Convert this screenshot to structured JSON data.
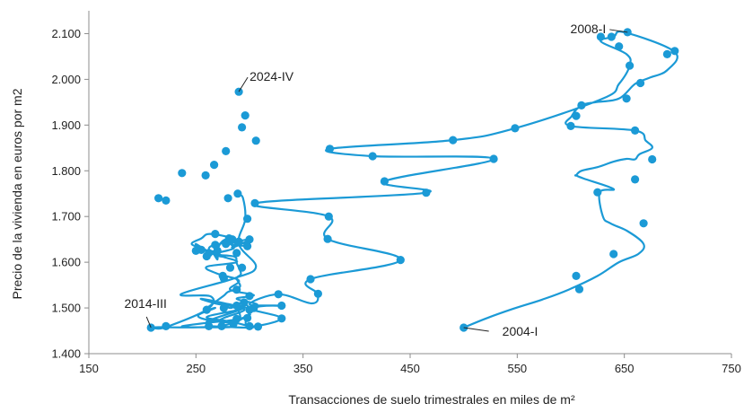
{
  "chart_data": {
    "type": "scatter",
    "xlabel": "Transacciones de suelo trimestrales en miles de m²",
    "ylabel": "Precio de la vivienda en euros por m2",
    "xlim": [
      150,
      750
    ],
    "ylim": [
      1400,
      2150
    ],
    "xticks": [
      "150",
      "250",
      "350",
      "450",
      "550",
      "650",
      "750"
    ],
    "yticks": [
      "1.400",
      "1.500",
      "1.600",
      "1.700",
      "1.800",
      "1.900",
      "2.000",
      "2.100"
    ],
    "grid": false,
    "line_color": "#1b9ad6",
    "x": [
      500,
      522,
      546,
      573,
      598,
      625,
      645,
      663,
      668,
      653,
      637,
      630,
      627,
      640,
      612,
      605,
      605,
      610,
      625,
      640,
      652,
      660,
      664,
      676,
      670,
      660,
      600,
      601,
      610,
      623,
      645,
      660,
      673,
      690,
      697,
      650,
      640,
      628,
      652,
      655,
      645,
      630,
      548,
      490,
      375,
      415,
      528,
      426,
      465,
      305,
      374,
      373,
      441,
      357,
      364,
      358,
      327,
      300,
      330,
      305,
      298,
      330,
      300,
      307,
      288,
      304,
      282,
      290,
      270,
      260,
      288,
      275,
      262,
      250,
      255,
      268,
      270,
      266,
      262,
      268,
      287,
      284,
      300,
      282,
      299,
      278,
      270,
      277,
      267,
      285,
      281,
      284,
      263,
      255,
      246,
      257,
      264,
      270,
      286,
      288,
      292,
      288,
      291,
      280,
      275,
      258,
      268,
      252,
      271,
      290,
      287,
      268,
      255,
      286,
      289,
      260,
      283,
      300,
      300,
      301,
      263,
      281,
      237,
      267,
      278,
      295,
      288,
      299,
      293,
      283,
      279,
      295,
      260,
      288,
      300,
      272,
      215,
      222,
      260,
      264,
      236,
      286,
      306,
      290,
      296,
      294,
      290
    ],
    "y": [
      1457,
      1478,
      1498,
      1518,
      1540,
      1570,
      1600,
      1618,
      1640,
      1668,
      1685,
      1700,
      1753,
      1760,
      1783,
      1790,
      1790,
      1800,
      1808,
      1820,
      1826,
      1825,
      1836,
      1850,
      1866,
      1888,
      1898,
      1920,
      1943,
      1950,
      1958,
      1990,
      2003,
      2020,
      2060,
      2103,
      2093,
      2083,
      2055,
      2030,
      1990,
      1958,
      1893,
      1867,
      1848,
      1832,
      1826,
      1777,
      1752,
      1729,
      1700,
      1651,
      1605,
      1563,
      1530,
      1510,
      1530,
      1508,
      1505,
      1500,
      1460,
      1477,
      1498,
      1508,
      1520,
      1528,
      1540,
      1560,
      1575,
      1590,
      1600,
      1612,
      1623,
      1640,
      1628,
      1622,
      1606,
      1620,
      1630,
      1638,
      1645,
      1632,
      1650,
      1640,
      1636,
      1650,
      1623,
      1612,
      1618,
      1630,
      1643,
      1652,
      1662,
      1652,
      1640,
      1629,
      1620,
      1616,
      1612,
      1598,
      1575,
      1565,
      1546,
      1535,
      1525,
      1495,
      1500,
      1482,
      1470,
      1472,
      1500,
      1510,
      1520,
      1505,
      1496,
      1480,
      1470,
      1460,
      1462,
      1457,
      1460,
      1458,
      1459,
      1470,
      1480,
      1495,
      1505,
      1500,
      1512,
      1500,
      1505,
      1500,
      1470,
      1475,
      1485,
      1460,
      1458,
      1458,
      1496,
      1525,
      1530,
      1565,
      1590,
      1640,
      1694,
      1740,
      1748
    ],
    "markers": [
      [
        500,
        1457
      ],
      [
        653,
        2103
      ],
      [
        655,
        2030
      ],
      [
        652,
        1958
      ],
      [
        697,
        2062
      ],
      [
        690,
        2055
      ],
      [
        665,
        1992
      ],
      [
        645,
        2072
      ],
      [
        638,
        2093
      ],
      [
        628,
        2093
      ],
      [
        610,
        1943
      ],
      [
        605,
        1920
      ],
      [
        600,
        1898
      ],
      [
        548,
        1893
      ],
      [
        490,
        1867
      ],
      [
        375,
        1848
      ],
      [
        415,
        1832
      ],
      [
        528,
        1826
      ],
      [
        426,
        1777
      ],
      [
        465,
        1752
      ],
      [
        305,
        1729
      ],
      [
        374,
        1700
      ],
      [
        373,
        1651
      ],
      [
        441,
        1605
      ],
      [
        357,
        1563
      ],
      [
        364,
        1531
      ],
      [
        676,
        1825
      ],
      [
        660,
        1888
      ],
      [
        660,
        1781
      ],
      [
        625,
        1753
      ],
      [
        668,
        1685
      ],
      [
        640,
        1618
      ],
      [
        605,
        1570
      ],
      [
        608,
        1541
      ],
      [
        300,
        1526
      ],
      [
        330,
        1505
      ],
      [
        304,
        1500
      ],
      [
        298,
        1478
      ],
      [
        308,
        1459
      ],
      [
        330,
        1477
      ],
      [
        327,
        1530
      ],
      [
        288,
        1540
      ],
      [
        275,
        1570
      ],
      [
        276,
        1565
      ],
      [
        282,
        1588
      ],
      [
        293,
        1588
      ],
      [
        288,
        1620
      ],
      [
        270,
        1625
      ],
      [
        260,
        1613
      ],
      [
        250,
        1625
      ],
      [
        255,
        1627
      ],
      [
        262,
        1620
      ],
      [
        268,
        1638
      ],
      [
        278,
        1640
      ],
      [
        284,
        1650
      ],
      [
        300,
        1650
      ],
      [
        298,
        1635
      ],
      [
        281,
        1652
      ],
      [
        290,
        1645
      ],
      [
        268,
        1662
      ],
      [
        298,
        1695
      ],
      [
        215,
        1740
      ],
      [
        222,
        1735
      ],
      [
        259,
        1790
      ],
      [
        237,
        1795
      ],
      [
        267,
        1813
      ],
      [
        278,
        1843
      ],
      [
        306,
        1866
      ],
      [
        293,
        1895
      ],
      [
        296,
        1921
      ],
      [
        290,
        1973
      ],
      [
        280,
        1740
      ],
      [
        289,
        1750
      ],
      [
        274,
        1460
      ],
      [
        260,
        1496
      ],
      [
        276,
        1500
      ],
      [
        288,
        1505
      ],
      [
        295,
        1512
      ],
      [
        300,
        1496
      ],
      [
        288,
        1476
      ],
      [
        285,
        1465
      ],
      [
        222,
        1460
      ],
      [
        208,
        1457
      ],
      [
        262,
        1460
      ],
      [
        300,
        1460
      ]
    ],
    "annotations": [
      {
        "label": "2004-I",
        "x": 500,
        "y": 1457
      },
      {
        "label": "2008-I",
        "x": 653,
        "y": 2103
      },
      {
        "label": "2014-III",
        "x": 208,
        "y": 1457
      },
      {
        "label": "2024-IV",
        "x": 290,
        "y": 1973
      }
    ]
  }
}
